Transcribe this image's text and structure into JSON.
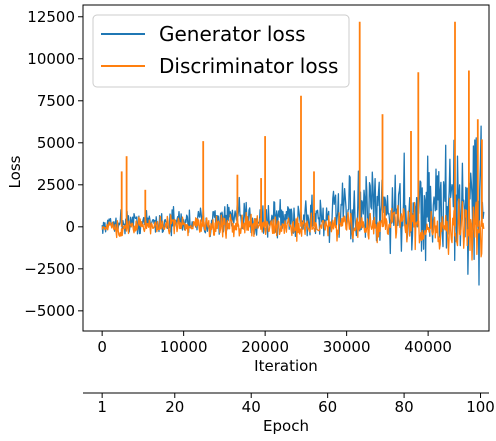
{
  "chart_data": {
    "type": "line",
    "xlabel": "Iteration",
    "ylabel": "Loss",
    "secondary_xlabel": "Epoch",
    "xlim": [
      -2350,
      47470
    ],
    "ylim": [
      -6200,
      13200
    ],
    "x_ticks": [
      0,
      10000,
      20000,
      30000,
      40000
    ],
    "x_tick_labels": [
      "0",
      "10000",
      "20000",
      "30000",
      "40000"
    ],
    "y_ticks": [
      -5000,
      -2500,
      0,
      2500,
      5000,
      7500,
      10000,
      12500
    ],
    "y_tick_labels": [
      "−5000",
      "−2500",
      "0",
      "2500",
      "5000",
      "7500",
      "10000",
      "12500"
    ],
    "epoch_axis": {
      "ticks": [
        1,
        20,
        40,
        60,
        80,
        100
      ],
      "tick_labels": [
        "1",
        "20",
        "40",
        "60",
        "80",
        "100"
      ],
      "iterations_per_epoch": 469
    },
    "legend_position": "top-left",
    "series": [
      {
        "name": "Generator loss",
        "color": "#1f77b4",
        "x": [
          0,
          2000,
          4000,
          6000,
          8000,
          10000,
          12000,
          14000,
          16000,
          18000,
          20000,
          22000,
          24000,
          26000,
          28000,
          30000,
          32000,
          34000,
          36000,
          38000,
          40000,
          42000,
          44000,
          46000,
          46900
        ],
        "upper": [
          400,
          1400,
          1200,
          1300,
          1400,
          1500,
          1600,
          1700,
          1900,
          2000,
          2100,
          2300,
          2500,
          2800,
          3000,
          3300,
          4000,
          4500,
          4800,
          5200,
          5600,
          6300,
          7200,
          8000,
          8100
        ],
        "lower": [
          -400,
          -800,
          -700,
          -800,
          -800,
          -900,
          -900,
          -1000,
          -1000,
          -1100,
          -1200,
          -1300,
          -1400,
          -1600,
          -1700,
          -1800,
          -2100,
          -2400,
          -2700,
          -3000,
          -3300,
          -3600,
          -4200,
          -5000,
          -3500
        ]
      },
      {
        "name": "Discriminator loss",
        "color": "#ff7f0e",
        "x": [
          0,
          2000,
          4000,
          6000,
          8000,
          10000,
          12000,
          14000,
          16000,
          18000,
          20000,
          22000,
          24000,
          26000,
          28000,
          30000,
          32000,
          34000,
          36000,
          38000,
          40000,
          42000,
          44000,
          46000,
          46900
        ],
        "upper": [
          300,
          900,
          800,
          800,
          800,
          800,
          900,
          900,
          900,
          1000,
          1000,
          1000,
          1100,
          1100,
          1200,
          1300,
          1400,
          1500,
          1600,
          1700,
          1800,
          2000,
          2200,
          2400,
          2600
        ],
        "lower": [
          -300,
          -900,
          -700,
          -700,
          -700,
          -800,
          -800,
          -800,
          -800,
          -900,
          -900,
          -900,
          -1000,
          -1000,
          -1100,
          -1100,
          -1300,
          -1400,
          -1500,
          -1600,
          -1800,
          -2000,
          -2200,
          -2400,
          -2600
        ],
        "spikes": [
          {
            "x": 2400,
            "y": 3300
          },
          {
            "x": 3000,
            "y": 4200
          },
          {
            "x": 5300,
            "y": 2200
          },
          {
            "x": 12400,
            "y": 5100
          },
          {
            "x": 16600,
            "y": 3100
          },
          {
            "x": 19500,
            "y": 2900
          },
          {
            "x": 20000,
            "y": 5400
          },
          {
            "x": 24400,
            "y": 7800
          },
          {
            "x": 26000,
            "y": 3300
          },
          {
            "x": 31600,
            "y": 12200
          },
          {
            "x": 34400,
            "y": 6700
          },
          {
            "x": 37900,
            "y": 5700
          },
          {
            "x": 38800,
            "y": 9200
          },
          {
            "x": 43300,
            "y": 12200
          },
          {
            "x": 45000,
            "y": 9300
          },
          {
            "x": 46100,
            "y": 6400
          },
          {
            "x": 46600,
            "y": 5200
          }
        ]
      }
    ]
  }
}
